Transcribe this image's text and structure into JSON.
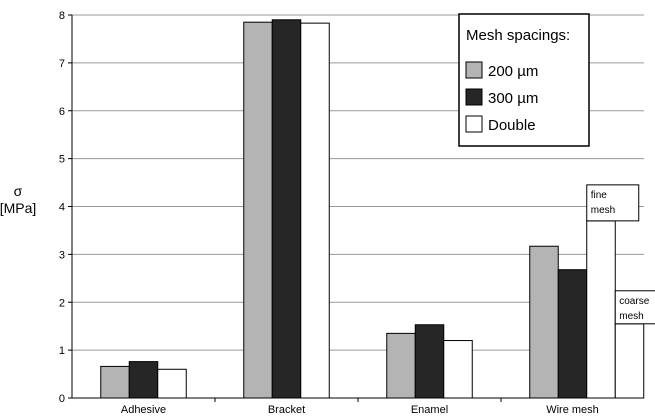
{
  "chart_data": {
    "type": "bar",
    "ylabel_symbol": "σ",
    "ylabel_unit": "[MPa]",
    "ylim": [
      0,
      8
    ],
    "yticks": [
      "0",
      "1",
      "2",
      "3",
      "4",
      "5",
      "6",
      "7",
      "8"
    ],
    "grid": "horizontal",
    "categories": [
      "Adhesive",
      "Bracket",
      "Enamel",
      "Wire mesh"
    ],
    "legend": {
      "title": "Mesh spacings:",
      "placement": "top-right"
    },
    "series": [
      {
        "name": "200 µm",
        "values": [
          0.66,
          7.85,
          1.35,
          3.17
        ],
        "color": "#b4b4b4"
      },
      {
        "name": "300 µm",
        "values": [
          0.76,
          7.9,
          1.53,
          2.68
        ],
        "color": "#262626"
      },
      {
        "name": "Double",
        "values": [
          0.6,
          7.83,
          1.2,
          3.7
        ],
        "color": "#ffffff"
      }
    ],
    "extra_bar": {
      "category": "Wire mesh",
      "value": 1.55,
      "color": "#ffffff"
    },
    "annotations": [
      {
        "text_lines": [
          "fine",
          "mesh"
        ]
      },
      {
        "text_lines": [
          "coarse",
          "mesh"
        ]
      }
    ]
  }
}
